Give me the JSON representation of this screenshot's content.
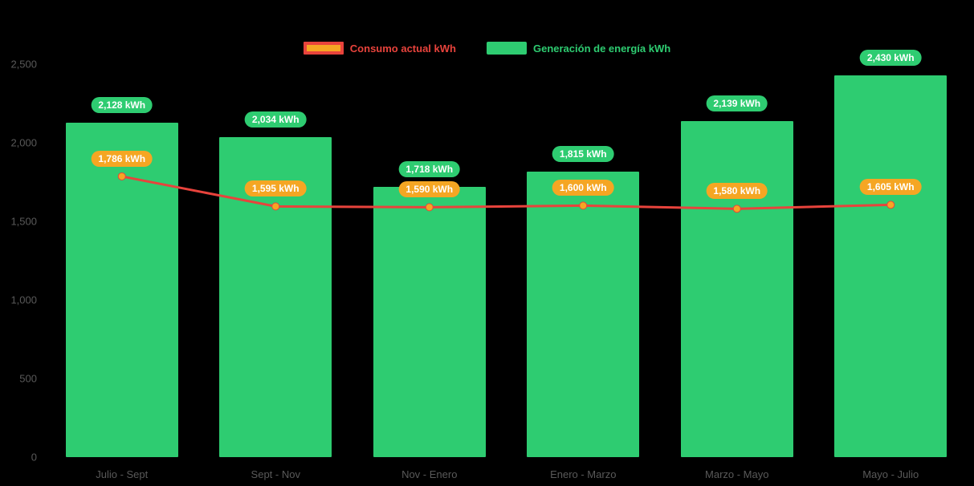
{
  "legend": {
    "consumo_label": "Consumo actual kWh",
    "generacion_label": "Generación de energía kWh"
  },
  "colors": {
    "bar": "#2ecc71",
    "line": "#e8433c",
    "point": "#f5a623",
    "pill_bar": "#2ecc71",
    "pill_line": "#f5a623",
    "axis_text": "#595959",
    "background": "#000000"
  },
  "chart_data": {
    "type": "bar",
    "subtype": "bar+line combo",
    "categories": [
      "Julio - Sept",
      "Sept - Nov",
      "Nov - Enero",
      "Enero - Marzo",
      "Marzo - Mayo",
      "Mayo - Julio"
    ],
    "series": [
      {
        "name": "Consumo actual kWh",
        "type": "line",
        "color": "#e8433c",
        "point_color": "#f5a623",
        "values": [
          1786,
          1595,
          1590,
          1600,
          1580,
          1605
        ],
        "labels": [
          "1,786 kWh",
          "1,595 kWh",
          "1,590 kWh",
          "1,600 kWh",
          "1,580 kWh",
          "1,605 kWh"
        ]
      },
      {
        "name": "Generación de energía kWh",
        "type": "bar",
        "color": "#2ecc71",
        "values": [
          2128,
          2034,
          1718,
          1815,
          2139,
          2430
        ],
        "labels": [
          "2,128 kWh",
          "2,034 kWh",
          "1,718 kWh",
          "1,815 kWh",
          "2,139 kWh",
          "2,430 kWh"
        ]
      }
    ],
    "title": "",
    "xlabel": "",
    "ylabel": "",
    "ylim": [
      0,
      2500
    ],
    "y_ticks": [
      0,
      500,
      1000,
      1500,
      2000,
      2500
    ],
    "y_tick_labels": [
      "0",
      "500",
      "1,000",
      "1,500",
      "2,000",
      "2,500"
    ],
    "grid": false,
    "legend_position": "top"
  }
}
